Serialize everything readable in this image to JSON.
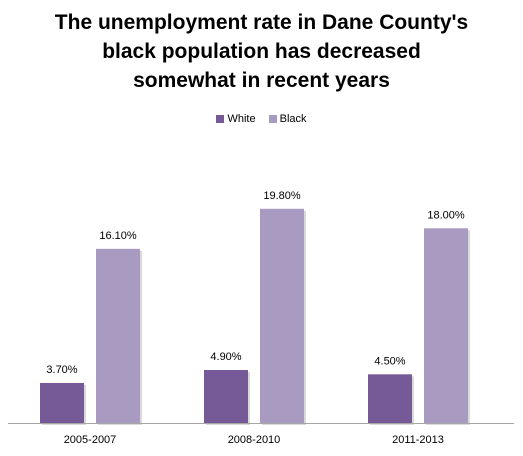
{
  "chart_data": {
    "type": "bar",
    "title_lines": [
      "The unemployment rate in Dane County's",
      "black population has decreased",
      "somewhat in recent years"
    ],
    "categories": [
      "2005-2007",
      "2008-2010",
      "2011-2013"
    ],
    "series": [
      {
        "name": "White",
        "values": [
          3.7,
          4.9,
          4.5
        ],
        "labels": [
          "3.70%",
          "4.90%",
          "4.50%"
        ],
        "color": "#765a97"
      },
      {
        "name": "Black",
        "values": [
          16.1,
          19.8,
          18.0
        ],
        "labels": [
          "16.10%",
          "19.80%",
          "18.00%"
        ],
        "color": "#a99ac2"
      }
    ],
    "ylim": [
      0,
      22
    ],
    "grid": false,
    "legend_position": "top"
  }
}
